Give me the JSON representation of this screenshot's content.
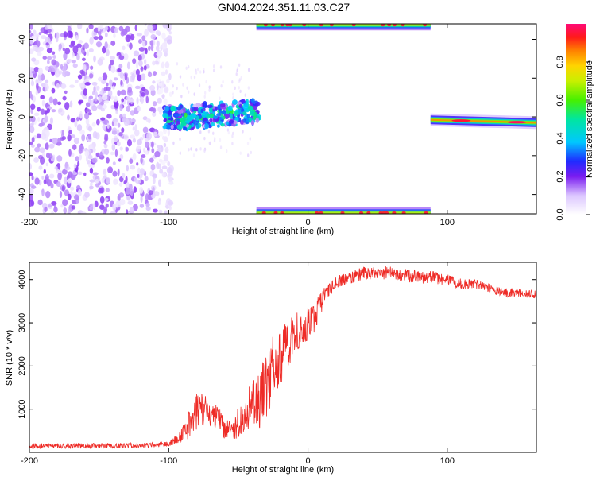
{
  "title": "GN04.2024.351.11.03.C27",
  "colors": {
    "snr_line": "#ee2b26",
    "frame": "#000000",
    "background": "#ffffff"
  },
  "chart_data": [
    {
      "type": "heatmap",
      "xlabel": "Height of straight line (km)",
      "ylabel": "Frequency (Hz)",
      "xlim": [
        -200,
        164
      ],
      "ylim": [
        -50,
        48
      ],
      "xticks": [
        {
          "value": -200,
          "label": "-200"
        },
        {
          "value": -100,
          "label": "-100"
        },
        {
          "value": 0,
          "label": "0"
        },
        {
          "value": 100,
          "label": "100"
        }
      ],
      "yticks": [
        {
          "value": -40,
          "label": "-40"
        },
        {
          "value": -20,
          "label": "-20"
        },
        {
          "value": 0,
          "label": "0"
        },
        {
          "value": 20,
          "label": "20"
        },
        {
          "value": 40,
          "label": "40"
        }
      ],
      "colorbar": {
        "label": "Normalized spectral amplitude",
        "range": [
          0,
          1
        ],
        "ticks": [
          {
            "value": 0.0,
            "label": "0.0"
          },
          {
            "value": 0.2,
            "label": "0.2"
          },
          {
            "value": 0.4,
            "label": "0.4"
          },
          {
            "value": 0.6,
            "label": "0.6"
          },
          {
            "value": 0.8,
            "label": "0.8"
          }
        ]
      },
      "regions": [
        {
          "name": "broadband-noise",
          "x_range": [
            -200,
            -98
          ],
          "freq_range": [
            -50,
            48
          ],
          "amplitude": 0.12
        },
        {
          "name": "sparse-noise",
          "x_range": [
            -98,
            -40
          ],
          "freq_range": [
            -20,
            28
          ],
          "amplitude": 0.06
        },
        {
          "name": "signal-near-zero",
          "x_range": [
            -103,
            -35
          ],
          "freq_start": -1,
          "freq_end": 3,
          "amplitude": 0.3
        },
        {
          "name": "aliased-upper",
          "x_range": [
            -37,
            88
          ],
          "freq_center": 47.5,
          "amplitude": 0.6
        },
        {
          "name": "aliased-lower",
          "x_range": [
            -37,
            88
          ],
          "freq_center": -49.5,
          "amplitude": 0.6
        },
        {
          "name": "signal-right",
          "x_range": [
            88,
            164
          ],
          "freq_start": -1.5,
          "freq_end": -3,
          "amplitude": 0.85
        }
      ]
    },
    {
      "type": "line",
      "xlabel": "Height of straight line (km)",
      "ylabel": "SNR (10 * v/v)",
      "xlim": [
        -200,
        164
      ],
      "ylim": [
        0,
        4400
      ],
      "xticks": [
        {
          "value": -200,
          "label": "-200"
        },
        {
          "value": -100,
          "label": "-100"
        },
        {
          "value": 0,
          "label": "0"
        },
        {
          "value": 100,
          "label": "100"
        }
      ],
      "yticks": [
        {
          "value": 1000,
          "label": "1000"
        },
        {
          "value": 2000,
          "label": "2000"
        },
        {
          "value": 3000,
          "label": "3000"
        },
        {
          "value": 4000,
          "label": "4000"
        }
      ],
      "series": [
        {
          "x": [
            -200,
            -180,
            -160,
            -140,
            -120,
            -110,
            -100,
            -95,
            -90,
            -85,
            -80,
            -75,
            -70,
            -65,
            -60,
            -55,
            -50,
            -45,
            -40,
            -35,
            -30,
            -25,
            -20,
            -15,
            -10,
            -5,
            0,
            5,
            10,
            15,
            20,
            25,
            30,
            40,
            50,
            60,
            70,
            80,
            90,
            100,
            110,
            120,
            130,
            140,
            150,
            164
          ],
          "y": [
            150,
            150,
            150,
            160,
            160,
            170,
            200,
            280,
            400,
            650,
            950,
            950,
            900,
            800,
            550,
            450,
            700,
            900,
            1100,
            1250,
            1550,
            1900,
            2250,
            2450,
            2700,
            2900,
            3000,
            3150,
            3450,
            3750,
            3950,
            4000,
            4050,
            4150,
            4150,
            4150,
            4100,
            4050,
            4050,
            4000,
            3900,
            3900,
            3800,
            3700,
            3700,
            3650
          ],
          "noise": [
            60,
            60,
            60,
            60,
            60,
            60,
            70,
            120,
            200,
            350,
            450,
            400,
            350,
            300,
            250,
            250,
            350,
            450,
            600,
            700,
            750,
            800,
            700,
            600,
            500,
            400,
            400,
            350,
            300,
            200,
            150,
            150,
            150,
            150,
            150,
            150,
            150,
            150,
            150,
            130,
            120,
            110,
            100,
            100,
            100,
            100
          ]
        }
      ]
    }
  ]
}
